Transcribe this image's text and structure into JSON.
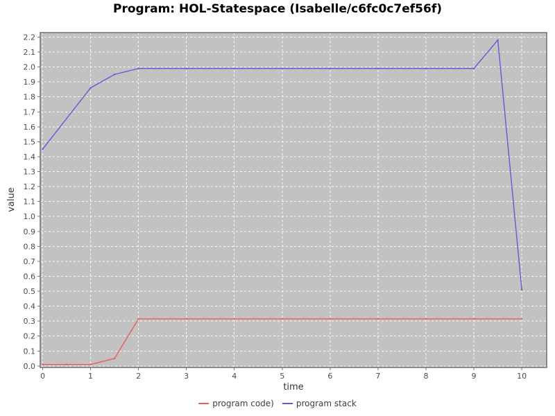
{
  "chart_data": {
    "type": "line",
    "title": "Program: HOL-Statespace (Isabelle/c6fc0c7ef56f)",
    "xlabel": "time",
    "ylabel": "value",
    "xlim": [
      -0.05,
      10.52
    ],
    "ylim": [
      -0.01,
      2.23
    ],
    "x_ticks": [
      0,
      1,
      2,
      3,
      4,
      5,
      6,
      7,
      8,
      9,
      10
    ],
    "y_ticks": [
      0.0,
      0.1,
      0.2,
      0.3,
      0.4,
      0.5,
      0.6,
      0.7,
      0.8,
      0.9,
      1.0,
      1.1,
      1.2,
      1.3,
      1.4,
      1.5,
      1.6,
      1.7,
      1.8,
      1.9,
      2.0,
      2.1,
      2.2
    ],
    "grid": true,
    "legend_position": "bottom",
    "colors": {
      "plot_background": "#c2c2c2",
      "grid_line": "#ffffff",
      "axis_border": "#6e6e6e",
      "tick_mark": "#757575",
      "tick_label": "#4a4a4a",
      "axis_label": "#333333",
      "title_text": "#000000"
    },
    "series": [
      {
        "name": "program code)",
        "color": "#ec5b5b",
        "points": [
          [
            0,
            0.01
          ],
          [
            0.5,
            0.01
          ],
          [
            1,
            0.01
          ],
          [
            1.5,
            0.05
          ],
          [
            2,
            0.315
          ],
          [
            3,
            0.315
          ],
          [
            4,
            0.315
          ],
          [
            5,
            0.315
          ],
          [
            6,
            0.315
          ],
          [
            7,
            0.315
          ],
          [
            8,
            0.315
          ],
          [
            9,
            0.315
          ],
          [
            10,
            0.315
          ]
        ]
      },
      {
        "name": "program stack",
        "color": "#5c5cd6",
        "points": [
          [
            0,
            1.45
          ],
          [
            1,
            1.86
          ],
          [
            1.5,
            1.95
          ],
          [
            2,
            1.99
          ],
          [
            3,
            1.99
          ],
          [
            4,
            1.99
          ],
          [
            5,
            1.99
          ],
          [
            6,
            1.99
          ],
          [
            7,
            1.99
          ],
          [
            8,
            1.99
          ],
          [
            9,
            1.99
          ],
          [
            9.5,
            2.18
          ],
          [
            10,
            0.51
          ]
        ]
      }
    ]
  }
}
